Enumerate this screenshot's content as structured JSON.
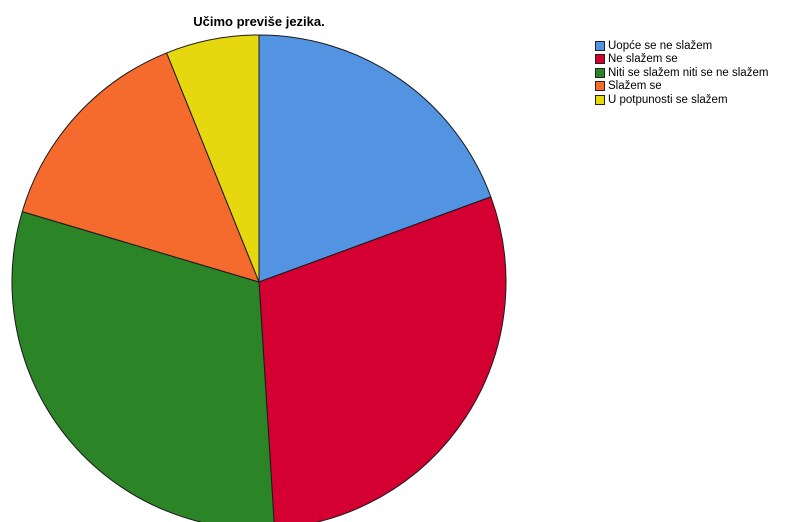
{
  "chart_data": {
    "type": "pie",
    "title": "Učimo previše jezika.",
    "legend_position": "right",
    "slices": [
      {
        "label": "Uopće se ne slažem",
        "value": 19.4,
        "color": "#5294e2"
      },
      {
        "label": "Ne slažem se",
        "value": 29.6,
        "color": "#d50032"
      },
      {
        "label": "Niti se slažem niti se ne slažem",
        "value": 30.6,
        "color": "#2b8527"
      },
      {
        "label": "Slažem se",
        "value": 14.3,
        "color": "#f46b2d"
      },
      {
        "label": "U potpunosti se slažem",
        "value": 6.1,
        "color": "#e5d80f"
      }
    ]
  }
}
